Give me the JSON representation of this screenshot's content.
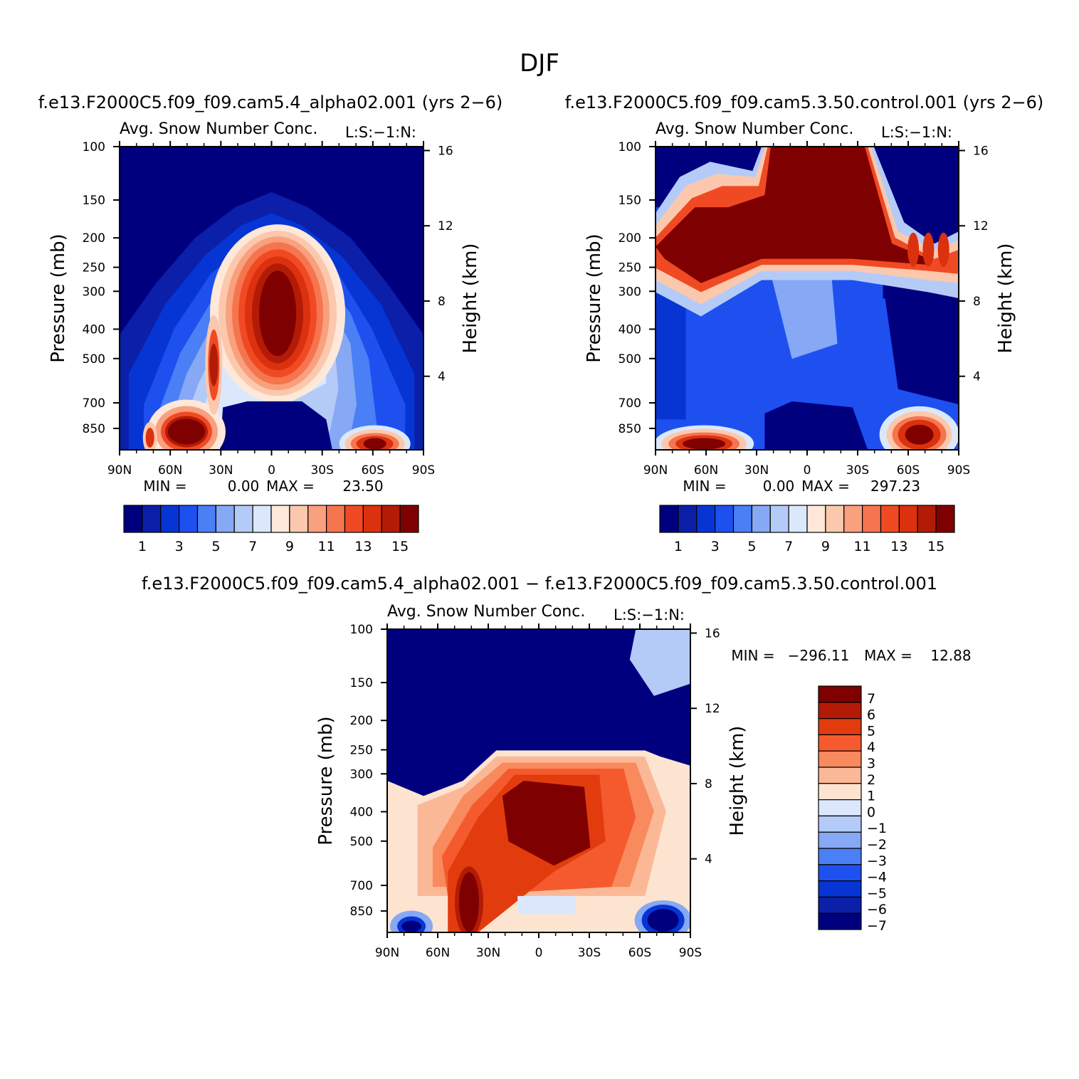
{
  "figure": {
    "title": "DJF"
  },
  "colors": {
    "abs_scale": [
      "#00007f",
      "#0b1fa8",
      "#0635d4",
      "#1e50f0",
      "#4a7ff5",
      "#86a8f5",
      "#b4cbf7",
      "#dbe8fb",
      "#fde8d9",
      "#fcc8ad",
      "#f9a07e",
      "#f5754e",
      "#f04a24",
      "#db310e",
      "#b31b07",
      "#7f0000"
    ],
    "diff_scale": [
      "#7f0000",
      "#b31b07",
      "#e23c0e",
      "#f55a2e",
      "#f88a5e",
      "#fbb897",
      "#fde4d0",
      "#dbe8fb",
      "#b4cbf7",
      "#86a8f5",
      "#4a7ff5",
      "#1e50f0",
      "#0635d4",
      "#0b1fa8",
      "#00007f"
    ]
  },
  "chart_data": [
    {
      "type": "heatmap",
      "case": "f.e13.F2000C5.f09_f09.cam5.4_alpha02.001 (yrs 2−6)",
      "title": "Avg. Snow Number Conc.",
      "units_label": "L:S:−1:N:",
      "xlabel": "",
      "ylabel": "Pressure (mb)",
      "ylabel_right": "Height (km)",
      "x_ticks": [
        "90N",
        "60N",
        "30N",
        "0",
        "30S",
        "60S",
        "90S"
      ],
      "y_ticks": [
        "100",
        "150",
        "200",
        "250",
        "300",
        "400",
        "500",
        "700",
        "850"
      ],
      "y_ticks_right": [
        "16",
        "12",
        "8",
        "4"
      ],
      "min_label": "MIN =",
      "min_value": "0.00",
      "max_label": "MAX =",
      "max_value": "23.50",
      "colorbar_labels": [
        "1",
        "3",
        "5",
        "7",
        "9",
        "11",
        "13",
        "15"
      ],
      "levels": [
        1,
        2,
        3,
        4,
        5,
        6,
        7,
        8,
        9,
        10,
        11,
        12,
        13,
        14,
        15
      ],
      "features": [
        {
          "lat": 5,
          "p": 380,
          "value": 15.5,
          "name": "tropical core"
        },
        {
          "lat": 55,
          "p": 820,
          "value": 15.0,
          "name": "NH lower"
        },
        {
          "lat": 35,
          "p": 450,
          "value": 12.0,
          "name": "NH arm"
        },
        {
          "lat": -65,
          "p": 860,
          "value": 13.0,
          "name": "SH lower"
        }
      ]
    },
    {
      "type": "heatmap",
      "case": "f.e13.F2000C5.f09_f09.cam5.3.50.control.001 (yrs 2−6)",
      "title": "Avg. Snow Number Conc.",
      "units_label": "L:S:−1:N:",
      "xlabel": "",
      "ylabel": "Pressure (mb)",
      "ylabel_right": "Height (km)",
      "x_ticks": [
        "90N",
        "60N",
        "30N",
        "0",
        "30S",
        "60S",
        "90S"
      ],
      "y_ticks": [
        "100",
        "150",
        "200",
        "250",
        "300",
        "400",
        "500",
        "700",
        "850"
      ],
      "y_ticks_right": [
        "16",
        "12",
        "8",
        "4"
      ],
      "min_label": "MIN =",
      "min_value": "0.00",
      "max_label": "MAX =",
      "max_value": "297.23",
      "colorbar_labels": [
        "1",
        "3",
        "5",
        "7",
        "9",
        "11",
        "13",
        "15"
      ],
      "levels": [
        1,
        2,
        3,
        4,
        5,
        6,
        7,
        8,
        9,
        10,
        11,
        12,
        13,
        14,
        15
      ],
      "features": [
        {
          "lat": 10,
          "p": 180,
          "value": 16,
          "name": "upper tropical maximum"
        },
        {
          "lat": 70,
          "p": 200,
          "value": 16,
          "name": "NH upper band"
        },
        {
          "lat": -75,
          "p": 210,
          "value": 14,
          "name": "SH upper band"
        },
        {
          "lat": 60,
          "p": 850,
          "value": 14,
          "name": "NH lower"
        },
        {
          "lat": -70,
          "p": 850,
          "value": 16,
          "name": "SH lower"
        }
      ]
    },
    {
      "type": "heatmap",
      "case": "f.e13.F2000C5.f09_f09.cam5.4_alpha02.001 − f.e13.F2000C5.f09_f09.cam5.3.50.control.001",
      "title": "Avg. Snow Number Conc.",
      "units_label": "L:S:−1:N:",
      "xlabel": "",
      "ylabel": "Pressure (mb)",
      "ylabel_right": "Height (km)",
      "x_ticks": [
        "90N",
        "60N",
        "30N",
        "0",
        "30S",
        "60S",
        "90S"
      ],
      "y_ticks": [
        "100",
        "150",
        "200",
        "250",
        "300",
        "400",
        "500",
        "700",
        "850"
      ],
      "y_ticks_right": [
        "16",
        "12",
        "8",
        "4"
      ],
      "min_label": "MIN =",
      "min_value": "−296.11",
      "max_label": "MAX =",
      "max_value": "12.88",
      "colorbar_labels": [
        "7",
        "6",
        "5",
        "4",
        "3",
        "2",
        "1",
        "0",
        "−1",
        "−2",
        "−3",
        "−4",
        "−5",
        "−6",
        "−7"
      ],
      "levels": [
        7,
        6,
        5,
        4,
        3,
        2,
        1,
        0,
        -1,
        -2,
        -3,
        -4,
        -5,
        -6,
        -7
      ],
      "features": [
        {
          "lat": 0,
          "p": 180,
          "value": -8,
          "name": "upper negative"
        },
        {
          "lat": 5,
          "p": 400,
          "value": 8,
          "name": "tropical positive"
        },
        {
          "lat": 45,
          "p": 800,
          "value": 8,
          "name": "NH lower positive"
        },
        {
          "lat": -70,
          "p": 820,
          "value": -8,
          "name": "SH lower negative"
        }
      ]
    }
  ]
}
